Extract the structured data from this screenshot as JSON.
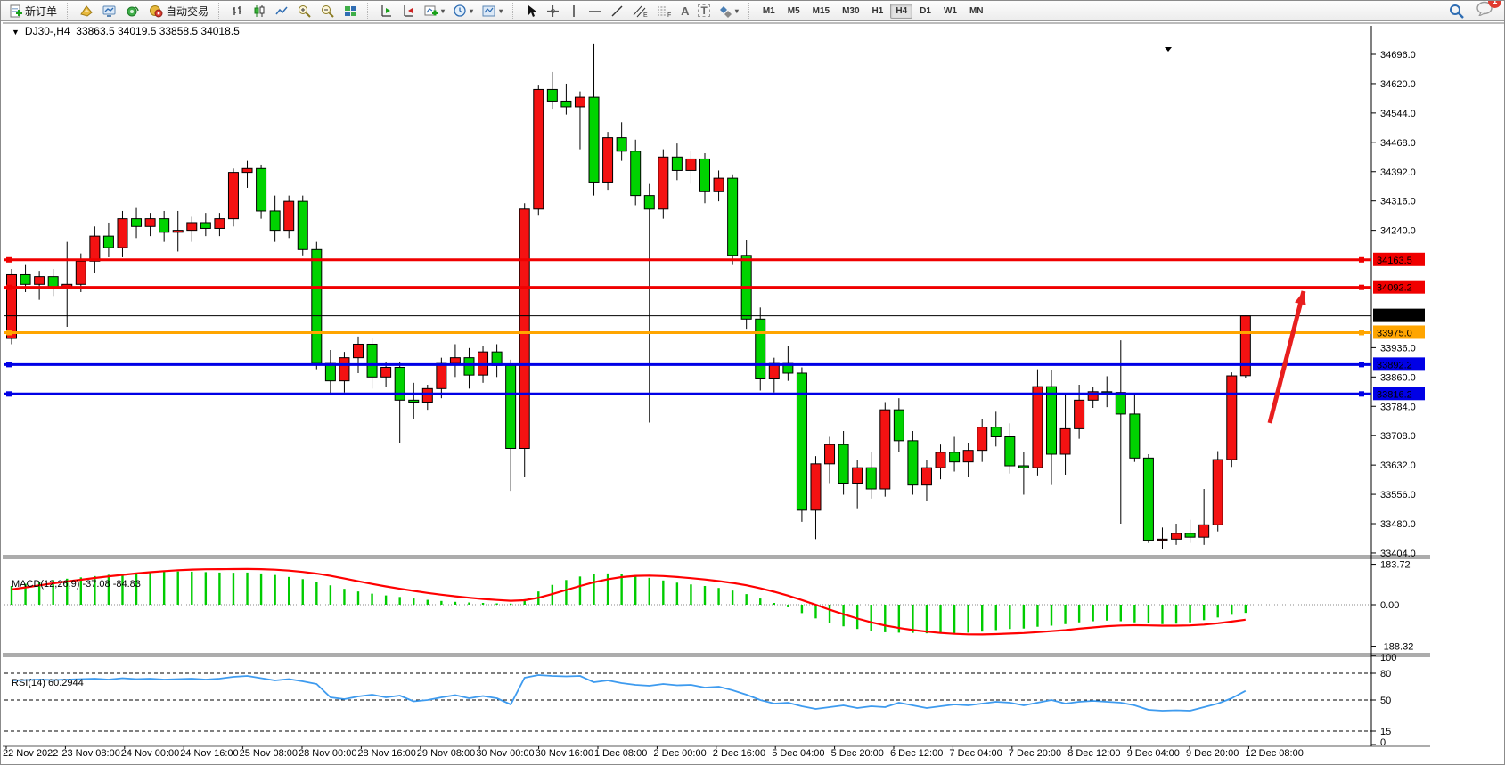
{
  "toolbar": {
    "new_order_label": "新订单",
    "auto_trading_label": "自动交易",
    "text_tool_glyph": "A",
    "label_tool_glyph": "T",
    "timeframes": [
      "M1",
      "M5",
      "M15",
      "M30",
      "H1",
      "H4",
      "D1",
      "W1",
      "MN"
    ],
    "selected_timeframe": "H4",
    "notification_badge": "1",
    "icon_names": [
      "new-order-icon",
      "compass-icon",
      "market-icon",
      "signals-icon",
      "autotrading-icon",
      "bar-chart-icon",
      "candlestick-icon",
      "line-chart-icon",
      "zoom-in-icon",
      "zoom-out-icon",
      "tile-windows-icon",
      "shift-end-icon",
      "shift-offset-icon",
      "indicators-icon",
      "periods-icon",
      "templates-icon",
      "cursor-icon",
      "crosshair-icon",
      "vline-icon",
      "hline-icon",
      "trendline-icon",
      "channel-icon",
      "fibonacci-icon",
      "text-icon",
      "label-icon",
      "shapes-icon",
      "search-icon",
      "chat-icon"
    ]
  },
  "chart": {
    "title_symbol": "DJ30-,H4",
    "title_ohlc": "33863.5 34019.5 33858.5 34018.5"
  },
  "chart_data": {
    "type": "candlestick",
    "symbol": "DJ30-",
    "timeframe": "H4",
    "ohlc_current": {
      "open": 33863.5,
      "high": 34019.5,
      "low": 33858.5,
      "close": 34018.5
    },
    "ylim": [
      33399,
      34737
    ],
    "price_ticks": [
      34696.0,
      34620.0,
      34544.0,
      34468.0,
      34392.0,
      34316.0,
      34240.0,
      33936.0,
      33860.0,
      33784.0,
      33708.0,
      33632.0,
      33556.0,
      33480.0,
      33404.0
    ],
    "hlines": [
      {
        "price": 34163.5,
        "label": "34163.5",
        "color": "#f00000",
        "width": 3
      },
      {
        "price": 34092.2,
        "label": "34092.2",
        "color": "#f00000",
        "width": 3
      },
      {
        "price": 34018.5,
        "label": "34018.5",
        "color": "#000000",
        "width": 1,
        "current": true
      },
      {
        "price": 33975.0,
        "label": "33975.0",
        "color": "#ffa500",
        "width": 3
      },
      {
        "price": 33892.2,
        "label": "33892.2",
        "color": "#0000e6",
        "width": 3
      },
      {
        "price": 33816.2,
        "label": "33816.2",
        "color": "#0000e6",
        "width": 3
      }
    ],
    "candles": [
      [
        33960,
        34140,
        33945,
        34125
      ],
      [
        34125,
        34150,
        34080,
        34100
      ],
      [
        34100,
        34135,
        34060,
        34120
      ],
      [
        34120,
        34140,
        34070,
        34090
      ],
      [
        34090,
        34210,
        33990,
        34100
      ],
      [
        34100,
        34180,
        34080,
        34160
      ],
      [
        34160,
        34250,
        34130,
        34225
      ],
      [
        34225,
        34260,
        34170,
        34195
      ],
      [
        34195,
        34290,
        34170,
        34270
      ],
      [
        34270,
        34300,
        34220,
        34250
      ],
      [
        34250,
        34285,
        34225,
        34270
      ],
      [
        34270,
        34290,
        34210,
        34235
      ],
      [
        34235,
        34290,
        34185,
        34240
      ],
      [
        34240,
        34275,
        34210,
        34260
      ],
      [
        34260,
        34285,
        34225,
        34245
      ],
      [
        34245,
        34285,
        34225,
        34270
      ],
      [
        34270,
        34400,
        34250,
        34390
      ],
      [
        34390,
        34420,
        34350,
        34400
      ],
      [
        34400,
        34410,
        34270,
        34290
      ],
      [
        34290,
        34330,
        34210,
        34240
      ],
      [
        34240,
        34330,
        34220,
        34315
      ],
      [
        34315,
        34330,
        34175,
        34190
      ],
      [
        34190,
        34210,
        33880,
        33895
      ],
      [
        33895,
        33930,
        33815,
        33850
      ],
      [
        33850,
        33925,
        33820,
        33910
      ],
      [
        33910,
        33965,
        33870,
        33945
      ],
      [
        33945,
        33960,
        33830,
        33860
      ],
      [
        33860,
        33900,
        33835,
        33885
      ],
      [
        33885,
        33900,
        33690,
        33800
      ],
      [
        33800,
        33845,
        33750,
        33795
      ],
      [
        33795,
        33840,
        33775,
        33830
      ],
      [
        33830,
        33910,
        33805,
        33895
      ],
      [
        33895,
        33945,
        33860,
        33910
      ],
      [
        33910,
        33935,
        33830,
        33865
      ],
      [
        33865,
        33940,
        33845,
        33925
      ],
      [
        33925,
        33945,
        33860,
        33890
      ],
      [
        33890,
        33905,
        33565,
        33675
      ],
      [
        33675,
        34310,
        33600,
        34295
      ],
      [
        34295,
        34615,
        34280,
        34605
      ],
      [
        34605,
        34650,
        34555,
        34575
      ],
      [
        34575,
        34620,
        34540,
        34560
      ],
      [
        34560,
        34600,
        34450,
        34585
      ],
      [
        34585,
        34724,
        34330,
        34365
      ],
      [
        34365,
        34495,
        34345,
        34480
      ],
      [
        34480,
        34520,
        34420,
        34445
      ],
      [
        34445,
        34475,
        34305,
        34330
      ],
      [
        34330,
        34360,
        33742,
        34295
      ],
      [
        34295,
        34450,
        34270,
        34430
      ],
      [
        34430,
        34465,
        34370,
        34395
      ],
      [
        34395,
        34445,
        34360,
        34425
      ],
      [
        34425,
        34440,
        34310,
        34340
      ],
      [
        34340,
        34395,
        34315,
        34375
      ],
      [
        34375,
        34385,
        34150,
        34175
      ],
      [
        34175,
        34215,
        33985,
        34010
      ],
      [
        34010,
        34040,
        33825,
        33855
      ],
      [
        33855,
        33910,
        33820,
        33895
      ],
      [
        33895,
        33940,
        33850,
        33870
      ],
      [
        33870,
        33885,
        33485,
        33515
      ],
      [
        33515,
        33655,
        33440,
        33635
      ],
      [
        33635,
        33705,
        33585,
        33685
      ],
      [
        33685,
        33720,
        33555,
        33585
      ],
      [
        33585,
        33645,
        33520,
        33625
      ],
      [
        33625,
        33665,
        33545,
        33570
      ],
      [
        33570,
        33795,
        33550,
        33775
      ],
      [
        33775,
        33805,
        33665,
        33695
      ],
      [
        33695,
        33720,
        33555,
        33580
      ],
      [
        33580,
        33645,
        33540,
        33625
      ],
      [
        33625,
        33685,
        33595,
        33665
      ],
      [
        33665,
        33705,
        33615,
        33640
      ],
      [
        33640,
        33690,
        33600,
        33670
      ],
      [
        33670,
        33750,
        33640,
        33730
      ],
      [
        33730,
        33770,
        33680,
        33705
      ],
      [
        33705,
        33740,
        33610,
        33630
      ],
      [
        33630,
        33665,
        33555,
        33625
      ],
      [
        33625,
        33880,
        33605,
        33835
      ],
      [
        33835,
        33878,
        33580,
        33660
      ],
      [
        33660,
        33814,
        33607,
        33726
      ],
      [
        33726,
        33840,
        33700,
        33800
      ],
      [
        33800,
        33835,
        33780,
        33822
      ],
      [
        33822,
        33862,
        33782,
        33820
      ],
      [
        33820,
        33955,
        33480,
        33764
      ],
      [
        33764,
        33815,
        33640,
        33650
      ],
      [
        33650,
        33660,
        33430,
        33437
      ],
      [
        33437,
        33470,
        33415,
        33440
      ],
      [
        33440,
        33480,
        33425,
        33455
      ],
      [
        33455,
        33490,
        33430,
        33445
      ],
      [
        33445,
        33570,
        33425,
        33477
      ],
      [
        33477,
        33668,
        33460,
        33646
      ],
      [
        33646,
        33872,
        33627,
        33863
      ],
      [
        33863.5,
        34019.5,
        33858.5,
        34018.5
      ]
    ],
    "time_labels": [
      "22 Nov 2022",
      "23 Nov 08:00",
      "24 Nov 00:00",
      "24 Nov 16:00",
      "25 Nov 08:00",
      "28 Nov 00:00",
      "28 Nov 16:00",
      "29 Nov 08:00",
      "30 Nov 00:00",
      "30 Nov 16:00",
      "1 Dec 08:00",
      "2 Dec 00:00",
      "2 Dec 16:00",
      "5 Dec 04:00",
      "5 Dec 20:00",
      "6 Dec 12:00",
      "7 Dec 04:00",
      "7 Dec 20:00",
      "8 Dec 12:00",
      "9 Dec 04:00",
      "9 Dec 20:00",
      "12 Dec 08:00"
    ],
    "macd": {
      "label": "MACD(12,26,9) -37.08 -84.83",
      "main_value": -37.08,
      "signal_value": -84.83,
      "axis_labels": [
        "183.72",
        "0.00",
        "-188.32"
      ],
      "axis_values": [
        183.72,
        0,
        -188.32
      ],
      "histogram": [
        85,
        95,
        105,
        112,
        118,
        124,
        130,
        136,
        141,
        145,
        148,
        150,
        151,
        150,
        148,
        146,
        145,
        146,
        142,
        135,
        126,
        116,
        105,
        88,
        72,
        60,
        50,
        42,
        35,
        28,
        22,
        17,
        13,
        10,
        8,
        6,
        5,
        25,
        60,
        90,
        112,
        128,
        138,
        142,
        140,
        133,
        122,
        110,
        100,
        92,
        85,
        76,
        64,
        48,
        28,
        8,
        -12,
        -38,
        -62,
        -82,
        -98,
        -110,
        -119,
        -125,
        -127,
        -128,
        -130,
        -131,
        -130,
        -127,
        -122,
        -115,
        -110,
        -108,
        -100,
        -95,
        -88,
        -80,
        -75,
        -72,
        -75,
        -80,
        -85,
        -88,
        -86,
        -80,
        -70,
        -58,
        -46,
        -37
      ]
    },
    "rsi": {
      "label": "RSI(14) 60.2944",
      "current_value": 60.2944,
      "levels": [
        100,
        80,
        50,
        15,
        0
      ],
      "dashed_levels": [
        80,
        50,
        15
      ],
      "values": [
        72,
        72.5,
        73,
        72.5,
        73,
        73.5,
        74,
        73,
        74.5,
        73.5,
        74,
        73,
        73.5,
        74,
        73,
        74,
        76,
        77,
        74.5,
        72,
        73.5,
        71,
        68,
        53,
        51,
        54,
        56,
        53,
        55,
        48.5,
        50,
        53,
        55.5,
        52,
        54.5,
        52,
        45,
        75,
        78,
        77,
        76.5,
        77,
        70,
        72,
        69,
        67,
        66,
        68,
        66.5,
        67,
        64,
        65,
        61,
        56,
        50,
        46,
        47,
        43,
        40,
        42,
        44,
        41,
        43,
        42,
        47,
        44,
        41,
        43,
        45,
        44,
        46,
        48,
        47,
        44,
        47,
        50,
        46,
        48,
        49,
        48,
        47,
        44,
        39,
        38,
        38.5,
        38,
        42,
        46,
        52,
        60.3
      ]
    },
    "annotation_arrow": {
      "from": [
        1424,
        474
      ],
      "to": [
        1462,
        326
      ],
      "color": "#e81e1e"
    },
    "colors": {
      "up": "#f41212",
      "down": "#00d300",
      "wick": "#000000",
      "macd_hist": "#00cc00",
      "macd_signal": "#ff0000",
      "rsi_line": "#3e9bef",
      "axis_text": "#000000",
      "background": "#ffffff"
    }
  }
}
